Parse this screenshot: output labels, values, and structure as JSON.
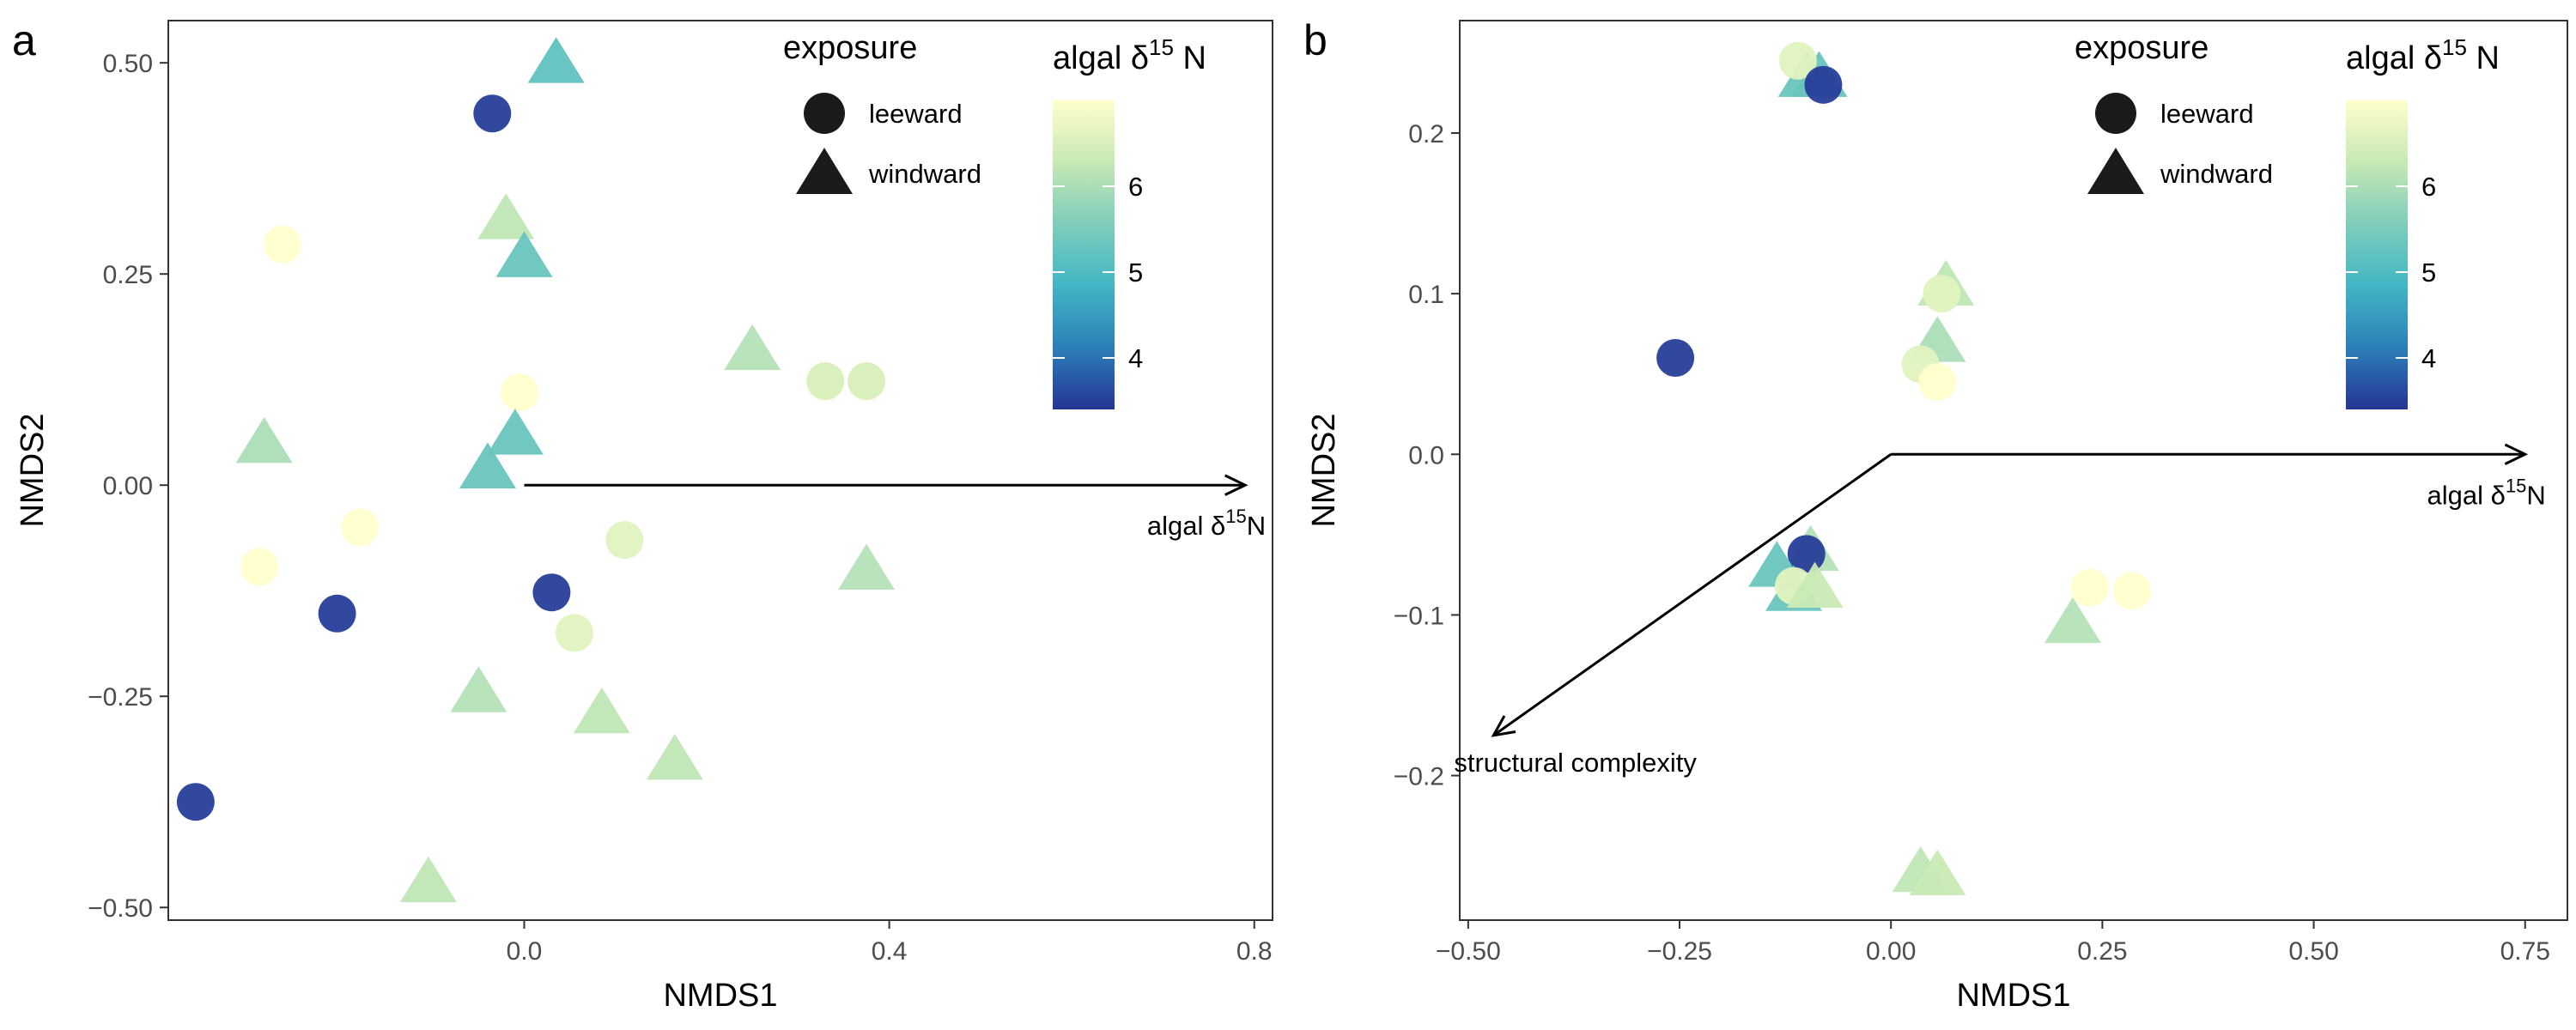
{
  "chart_data": [
    {
      "panel_label": "a",
      "type": "scatter",
      "xlabel": "NMDS1",
      "ylabel": "NMDS2",
      "xlim": [
        -0.39,
        0.82
      ],
      "ylim": [
        -0.515,
        0.55
      ],
      "xticks": [
        0.0,
        0.4,
        0.8
      ],
      "xtick_labels": [
        "0.0",
        "0.4",
        "0.8"
      ],
      "yticks": [
        0.5,
        0.25,
        0.0,
        -0.25,
        -0.5
      ],
      "ytick_labels": [
        "0.50",
        "0.25",
        "0.00",
        "−0.25",
        "−0.50"
      ],
      "grid": false,
      "shape_legend": {
        "title": "exposure",
        "entries": [
          {
            "label": "leeward",
            "shape": "circle"
          },
          {
            "label": "windward",
            "shape": "triangle"
          }
        ]
      },
      "color_legend": {
        "title_main": "algal δ",
        "title_sup": "15",
        "title_end": " N",
        "range": [
          3.4,
          7.0
        ],
        "ticks": [
          4,
          5,
          6
        ],
        "tick_labels": [
          "4",
          "5",
          "6"
        ],
        "palette": [
          "#253494",
          "#2c7fb8",
          "#41b6c4",
          "#7fcdbb",
          "#c7e9b4",
          "#ffffcc"
        ]
      },
      "arrows": [
        {
          "x": 0.79,
          "y": 0.0,
          "label_main": "algal δ",
          "label_sup": "15",
          "label_end": "N"
        }
      ],
      "points": [
        {
          "x": 0.035,
          "y": 0.5,
          "shape": "triangle",
          "value": 5.2
        },
        {
          "x": -0.035,
          "y": 0.44,
          "shape": "circle",
          "value": 3.5
        },
        {
          "x": -0.265,
          "y": 0.285,
          "shape": "circle",
          "value": 7.0
        },
        {
          "x": -0.02,
          "y": 0.315,
          "shape": "triangle",
          "value": 6.2
        },
        {
          "x": 0.0,
          "y": 0.27,
          "shape": "triangle",
          "value": 5.3
        },
        {
          "x": 0.25,
          "y": 0.16,
          "shape": "triangle",
          "value": 6.1
        },
        {
          "x": 0.33,
          "y": 0.123,
          "shape": "circle",
          "value": 6.5
        },
        {
          "x": 0.375,
          "y": 0.123,
          "shape": "circle",
          "value": 6.5
        },
        {
          "x": -0.005,
          "y": 0.11,
          "shape": "circle",
          "value": 7.0
        },
        {
          "x": -0.285,
          "y": 0.05,
          "shape": "triangle",
          "value": 6.0
        },
        {
          "x": -0.01,
          "y": 0.06,
          "shape": "triangle",
          "value": 5.3
        },
        {
          "x": -0.04,
          "y": 0.02,
          "shape": "triangle",
          "value": 5.3
        },
        {
          "x": -0.18,
          "y": -0.05,
          "shape": "circle",
          "value": 7.0
        },
        {
          "x": 0.11,
          "y": -0.065,
          "shape": "circle",
          "value": 6.6
        },
        {
          "x": -0.29,
          "y": -0.097,
          "shape": "circle",
          "value": 7.0
        },
        {
          "x": 0.375,
          "y": -0.1,
          "shape": "triangle",
          "value": 6.1
        },
        {
          "x": 0.03,
          "y": -0.127,
          "shape": "circle",
          "value": 3.5
        },
        {
          "x": -0.205,
          "y": -0.152,
          "shape": "circle",
          "value": 3.5
        },
        {
          "x": 0.055,
          "y": -0.175,
          "shape": "circle",
          "value": 6.6
        },
        {
          "x": -0.05,
          "y": -0.245,
          "shape": "triangle",
          "value": 6.1
        },
        {
          "x": 0.085,
          "y": -0.27,
          "shape": "triangle",
          "value": 6.2
        },
        {
          "x": 0.165,
          "y": -0.325,
          "shape": "triangle",
          "value": 6.2
        },
        {
          "x": -0.36,
          "y": -0.375,
          "shape": "circle",
          "value": 3.5
        },
        {
          "x": -0.105,
          "y": -0.47,
          "shape": "triangle",
          "value": 6.2
        }
      ]
    },
    {
      "panel_label": "b",
      "type": "scatter",
      "xlabel": "NMDS1",
      "ylabel": "NMDS2",
      "xlim": [
        -0.51,
        0.8
      ],
      "ylim": [
        -0.29,
        0.27
      ],
      "xticks": [
        -0.5,
        -0.25,
        0.0,
        0.25,
        0.5,
        0.75
      ],
      "xtick_labels": [
        "−0.50",
        "−0.25",
        "0.00",
        "0.25",
        "0.50",
        "0.75"
      ],
      "yticks": [
        0.2,
        0.1,
        0.0,
        -0.1,
        -0.2
      ],
      "ytick_labels": [
        "0.2",
        "0.1",
        "0.0",
        "−0.1",
        "−0.2"
      ],
      "grid": false,
      "shape_legend": {
        "title": "exposure",
        "entries": [
          {
            "label": "leeward",
            "shape": "circle"
          },
          {
            "label": "windward",
            "shape": "triangle"
          }
        ]
      },
      "color_legend": {
        "title_main": "algal δ",
        "title_sup": "15",
        "title_end": " N",
        "range": [
          3.4,
          7.0
        ],
        "ticks": [
          4,
          5,
          6
        ],
        "tick_labels": [
          "4",
          "5",
          "6"
        ],
        "palette": [
          "#253494",
          "#2c7fb8",
          "#41b6c4",
          "#7fcdbb",
          "#c7e9b4",
          "#ffffcc"
        ]
      },
      "arrows": [
        {
          "x": 0.75,
          "y": 0.0,
          "label_main": "algal δ",
          "label_sup": "15",
          "label_end": "N"
        },
        {
          "x": -0.47,
          "y": -0.175,
          "label_main": "structural complexity",
          "label_sup": "",
          "label_end": ""
        }
      ],
      "points": [
        {
          "x": -0.085,
          "y": 0.235,
          "shape": "triangle",
          "value": 5.3
        },
        {
          "x": -0.1,
          "y": 0.235,
          "shape": "triangle",
          "value": 5.3
        },
        {
          "x": -0.11,
          "y": 0.245,
          "shape": "circle",
          "value": 6.6
        },
        {
          "x": -0.08,
          "y": 0.23,
          "shape": "circle",
          "value": 3.5
        },
        {
          "x": 0.065,
          "y": 0.105,
          "shape": "triangle",
          "value": 6.2
        },
        {
          "x": 0.06,
          "y": 0.1,
          "shape": "circle",
          "value": 6.6
        },
        {
          "x": 0.055,
          "y": 0.07,
          "shape": "triangle",
          "value": 6.0
        },
        {
          "x": 0.035,
          "y": 0.056,
          "shape": "circle",
          "value": 6.6
        },
        {
          "x": 0.055,
          "y": 0.045,
          "shape": "circle",
          "value": 7.0
        },
        {
          "x": -0.255,
          "y": 0.06,
          "shape": "circle",
          "value": 3.5
        },
        {
          "x": -0.095,
          "y": -0.06,
          "shape": "triangle",
          "value": 6.1
        },
        {
          "x": -0.1,
          "y": -0.062,
          "shape": "circle",
          "value": 3.5
        },
        {
          "x": -0.135,
          "y": -0.07,
          "shape": "triangle",
          "value": 5.3
        },
        {
          "x": -0.115,
          "y": -0.085,
          "shape": "triangle",
          "value": 5.3
        },
        {
          "x": -0.115,
          "y": -0.082,
          "shape": "circle",
          "value": 6.6
        },
        {
          "x": -0.09,
          "y": -0.083,
          "shape": "triangle",
          "value": 6.3
        },
        {
          "x": 0.235,
          "y": -0.083,
          "shape": "circle",
          "value": 7.0
        },
        {
          "x": 0.285,
          "y": -0.085,
          "shape": "circle",
          "value": 7.0
        },
        {
          "x": 0.215,
          "y": -0.105,
          "shape": "triangle",
          "value": 6.1
        },
        {
          "x": 0.035,
          "y": -0.26,
          "shape": "triangle",
          "value": 6.2
        },
        {
          "x": 0.055,
          "y": -0.262,
          "shape": "triangle",
          "value": 6.3
        }
      ]
    }
  ]
}
